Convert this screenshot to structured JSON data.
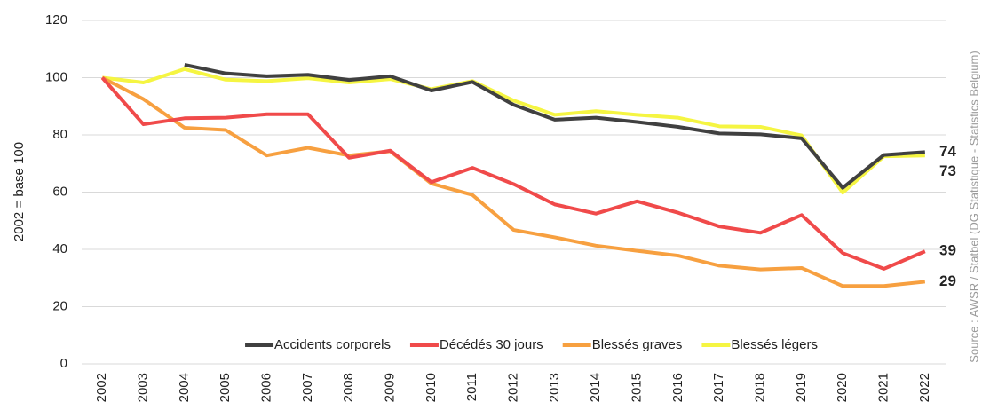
{
  "chart_data": {
    "type": "line",
    "y_label": "2002 = base 100",
    "source": "Source : AWSR / Statbel (DG Statistique - Statistics Belgium)",
    "categories": [
      "2002",
      "2003",
      "2004",
      "2005",
      "2006",
      "2007",
      "2008",
      "2009",
      "2010",
      "2011",
      "2012",
      "2013",
      "2014",
      "2015",
      "2016",
      "2017",
      "2018",
      "2019",
      "2020",
      "2021",
      "2022"
    ],
    "ylim": [
      0,
      120
    ],
    "yticks": [
      0,
      20,
      40,
      60,
      80,
      100,
      120
    ],
    "grid": true,
    "legend": "bottom",
    "series": [
      {
        "name": "Accidents corporels",
        "color": "#404040",
        "label_color": "#404040",
        "end_label": "74",
        "values": [
          null,
          null,
          104.5,
          101.5,
          100.5,
          101,
          99.2,
          100.5,
          95.5,
          98.5,
          90.5,
          85.3,
          86,
          84.5,
          82.8,
          80.5,
          80.2,
          78.8,
          61.5,
          73,
          74
        ]
      },
      {
        "name": "Décédés 30 jours",
        "color": "#f04a4a",
        "label_color": "#f04a4a",
        "end_label": "39",
        "values": [
          100,
          83.7,
          85.8,
          86,
          87.2,
          87.2,
          72,
          74.5,
          63.5,
          68.5,
          62.8,
          55.7,
          52.5,
          56.8,
          52.8,
          48,
          45.8,
          52,
          38.7,
          33.2,
          39.3
        ]
      },
      {
        "name": "Blessés graves",
        "color": "#f7a040",
        "label_color": "#f7a040",
        "end_label": "29",
        "values": [
          100,
          92.5,
          82.5,
          81.7,
          72.8,
          75.5,
          72.8,
          74.3,
          63,
          59,
          46.8,
          44.2,
          41.3,
          39.5,
          37.8,
          34.3,
          33,
          33.5,
          27.2,
          27.2,
          28.7
        ]
      },
      {
        "name": "Blessés légers",
        "color": "#f5f542",
        "label_color": "#b8a416",
        "end_label": "73",
        "values": [
          100,
          98.3,
          103,
          99.3,
          98.8,
          99.8,
          98.3,
          99.5,
          96,
          98.8,
          92,
          87,
          88.3,
          87,
          86,
          83,
          82.8,
          79.8,
          59.8,
          72.5,
          72.8
        ]
      }
    ]
  }
}
